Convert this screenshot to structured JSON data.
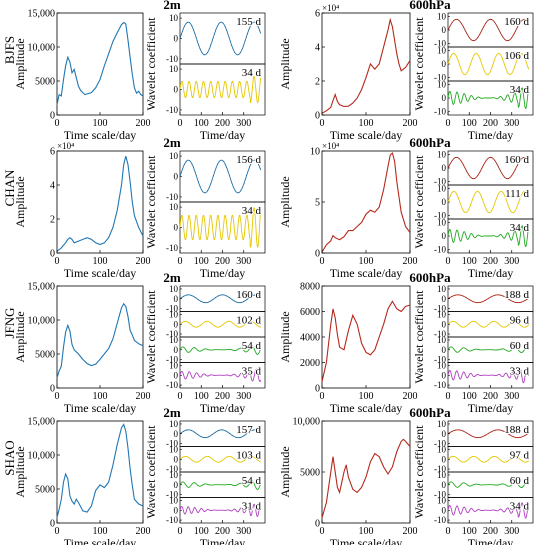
{
  "colors": {
    "blue": "#1f77b4",
    "red": "#b5281c",
    "yellow": "#e6c700",
    "green": "#22aa22",
    "magenta": "#b040c0",
    "axis": "#000000"
  },
  "labels": {
    "amplitude": "Amplitude",
    "time_scale": "Time scale/day",
    "time_day": "Time/day",
    "wavelet": "Wavelet coefficient",
    "level_2m": "2m",
    "level_600": "600hPa"
  },
  "chart_data": [
    {
      "type": "line",
      "station": "BJFS",
      "level": "2m",
      "color": "#1f77b4",
      "xlabel": "Time scale/day",
      "ylabel": "Amplitude",
      "xlim": [
        0,
        200
      ],
      "xticks": [
        0,
        100,
        200
      ],
      "ylim": [
        0,
        15000
      ],
      "yticks": [
        0,
        5000,
        10000,
        15000
      ],
      "yticklabels": [
        "0",
        "5000",
        "10,000",
        "15,000"
      ],
      "yexp": "",
      "x": [
        0,
        5,
        10,
        15,
        20,
        25,
        30,
        35,
        40,
        45,
        50,
        55,
        60,
        65,
        70,
        80,
        90,
        100,
        110,
        120,
        130,
        140,
        150,
        155,
        160,
        165,
        170,
        175,
        180,
        185,
        190,
        195,
        200
      ],
      "y": [
        1500,
        3000,
        2800,
        5200,
        7200,
        8500,
        7800,
        6200,
        6700,
        5500,
        4200,
        3600,
        3300,
        3000,
        3100,
        3300,
        4000,
        5200,
        7200,
        9000,
        10800,
        12100,
        13300,
        13600,
        13400,
        11000,
        8500,
        6000,
        4000,
        3200,
        3500,
        3000,
        2800
      ]
    },
    {
      "type": "line",
      "station": "BJFS",
      "level": "600hPa",
      "color": "#b5281c",
      "xlabel": "Time scale/day",
      "ylabel": "Amplitude",
      "xlim": [
        0,
        200
      ],
      "xticks": [
        0,
        100,
        200
      ],
      "ylim": [
        0,
        60000
      ],
      "yticks": [
        0,
        20000,
        40000,
        60000
      ],
      "yticklabels": [
        "0",
        "2",
        "4",
        "6"
      ],
      "yexp": "×10⁴",
      "x": [
        0,
        10,
        20,
        25,
        30,
        35,
        40,
        50,
        60,
        70,
        80,
        90,
        100,
        110,
        120,
        130,
        140,
        150,
        155,
        160,
        165,
        170,
        175,
        180,
        190,
        200
      ],
      "y": [
        1000,
        2500,
        4500,
        8500,
        12000,
        8000,
        6000,
        5000,
        5200,
        7000,
        10000,
        15000,
        22000,
        30000,
        27000,
        30000,
        40000,
        50000,
        56000,
        52000,
        44000,
        36000,
        30000,
        26000,
        28000,
        32000
      ]
    },
    {
      "type": "line",
      "station": "CHAN",
      "level": "2m",
      "color": "#1f77b4",
      "xlabel": "Time scale/day",
      "ylabel": "Amplitude",
      "xlim": [
        0,
        200
      ],
      "xticks": [
        0,
        100,
        200
      ],
      "ylim": [
        0,
        60000
      ],
      "yticks": [
        0,
        20000,
        40000,
        60000
      ],
      "yticklabels": [
        "0",
        "2",
        "4",
        "6"
      ],
      "yexp": "×10⁴",
      "x": [
        0,
        10,
        20,
        25,
        30,
        35,
        40,
        50,
        60,
        70,
        80,
        90,
        100,
        110,
        120,
        130,
        140,
        150,
        155,
        160,
        165,
        170,
        175,
        180,
        190,
        200
      ],
      "y": [
        1000,
        3000,
        6000,
        8000,
        9000,
        8000,
        6000,
        7000,
        8000,
        9000,
        8000,
        6000,
        5000,
        6000,
        9000,
        15000,
        25000,
        40000,
        52000,
        57000,
        52000,
        42000,
        30000,
        22000,
        15000,
        10000
      ]
    },
    {
      "type": "line",
      "station": "CHAN",
      "level": "600hPa",
      "color": "#b5281c",
      "xlabel": "Time scale/day",
      "ylabel": "Amplitude",
      "xlim": [
        0,
        200
      ],
      "xticks": [
        0,
        100,
        200
      ],
      "ylim": [
        0,
        100000
      ],
      "yticks": [
        0,
        50000,
        100000
      ],
      "yticklabels": [
        "0",
        "5",
        "10"
      ],
      "yexp": "×10⁴",
      "x": [
        0,
        10,
        20,
        25,
        30,
        40,
        50,
        60,
        70,
        80,
        90,
        100,
        110,
        120,
        130,
        140,
        150,
        155,
        160,
        165,
        170,
        175,
        180,
        190,
        200
      ],
      "y": [
        1000,
        8000,
        12000,
        17000,
        15000,
        13000,
        16000,
        22000,
        22000,
        26000,
        30000,
        38000,
        42000,
        40000,
        45000,
        62000,
        85000,
        96000,
        98000,
        90000,
        70000,
        55000,
        40000,
        26000,
        20000
      ]
    },
    {
      "type": "line",
      "station": "JFNG",
      "level": "2m",
      "color": "#1f77b4",
      "xlabel": "Time scale/day",
      "ylabel": "Amplitude",
      "xlim": [
        0,
        200
      ],
      "xticks": [
        0,
        100,
        200
      ],
      "ylim": [
        0,
        15000
      ],
      "yticks": [
        0,
        5000,
        10000,
        15000
      ],
      "yticklabels": [
        "0",
        "5000",
        "10,000",
        "15,000"
      ],
      "yexp": "",
      "x": [
        0,
        5,
        10,
        15,
        20,
        25,
        30,
        35,
        40,
        50,
        60,
        70,
        80,
        90,
        100,
        110,
        120,
        130,
        140,
        150,
        155,
        160,
        165,
        170,
        175,
        180,
        190,
        200
      ],
      "y": [
        1500,
        2500,
        3200,
        6000,
        8200,
        9200,
        8400,
        6400,
        5600,
        5000,
        4200,
        3600,
        3300,
        3500,
        4200,
        5000,
        5800,
        7200,
        9500,
        11800,
        12400,
        12000,
        10500,
        8500,
        7800,
        7000,
        6500,
        6200
      ]
    },
    {
      "type": "line",
      "station": "JFNG",
      "level": "600hPa",
      "color": "#b5281c",
      "xlabel": "Time scale/day",
      "ylabel": "Amplitude",
      "xlim": [
        0,
        200
      ],
      "xticks": [
        0,
        100,
        200
      ],
      "ylim": [
        0,
        8000
      ],
      "yticks": [
        0,
        2000,
        4000,
        6000,
        8000
      ],
      "yticklabels": [
        "0",
        "2000",
        "4000",
        "6000",
        "8000"
      ],
      "yexp": "",
      "x": [
        0,
        10,
        15,
        20,
        25,
        30,
        35,
        40,
        50,
        60,
        70,
        80,
        90,
        100,
        110,
        120,
        130,
        140,
        150,
        160,
        170,
        180,
        190,
        200
      ],
      "y": [
        500,
        2000,
        3500,
        5000,
        6200,
        5500,
        4200,
        3200,
        3000,
        4500,
        5700,
        5000,
        3500,
        2800,
        2600,
        3000,
        4000,
        5000,
        6200,
        6800,
        6200,
        6000,
        6400,
        6500
      ]
    },
    {
      "type": "line",
      "station": "SHAO",
      "level": "2m",
      "color": "#1f77b4",
      "xlabel": "Time scale/day",
      "ylabel": "Amplitude",
      "xlim": [
        0,
        200
      ],
      "xticks": [
        0,
        100,
        200
      ],
      "ylim": [
        0,
        15000
      ],
      "yticks": [
        0,
        5000,
        10000,
        15000
      ],
      "yticklabels": [
        "0",
        "5000",
        "10,000",
        "15,000"
      ],
      "yexp": "",
      "x": [
        0,
        5,
        10,
        15,
        20,
        25,
        30,
        35,
        40,
        45,
        50,
        60,
        70,
        80,
        90,
        100,
        110,
        120,
        130,
        140,
        150,
        155,
        160,
        165,
        170,
        175,
        180,
        190,
        200
      ],
      "y": [
        800,
        2000,
        3500,
        6000,
        7200,
        6500,
        4000,
        3200,
        2800,
        3500,
        3000,
        1800,
        1600,
        2500,
        4800,
        5600,
        5200,
        6000,
        8500,
        11500,
        14000,
        14500,
        13500,
        11000,
        8000,
        5500,
        3500,
        2800,
        2500
      ]
    },
    {
      "type": "line",
      "station": "SHAO",
      "level": "600hPa",
      "color": "#b5281c",
      "xlabel": "Time scale/day",
      "ylabel": "Amplitude",
      "xlim": [
        0,
        200
      ],
      "xticks": [
        0,
        100,
        200
      ],
      "ylim": [
        0,
        10000
      ],
      "yticks": [
        0,
        5000,
        10000
      ],
      "yticklabels": [
        "0",
        "5000",
        "10,000"
      ],
      "yexp": "",
      "x": [
        0,
        10,
        15,
        20,
        25,
        30,
        35,
        40,
        50,
        55,
        60,
        70,
        80,
        90,
        100,
        110,
        120,
        130,
        140,
        150,
        160,
        170,
        180,
        185,
        190,
        200
      ],
      "y": [
        500,
        2000,
        3500,
        5000,
        6500,
        5000,
        3500,
        3000,
        5000,
        5700,
        4500,
        3300,
        3000,
        3500,
        4500,
        6000,
        6800,
        6500,
        5500,
        4800,
        5500,
        7000,
        8000,
        8200,
        8000,
        7500
      ]
    },
    {
      "type": "line",
      "station": "BJFS",
      "level": "2m",
      "color": "#000000",
      "ylabel": "Wavelet coefficient",
      "xlabel": "Time/day",
      "xlim": [
        0,
        400
      ],
      "xticks": [
        0,
        100,
        200,
        300
      ],
      "yticks": [
        -10,
        0,
        10
      ],
      "series": [
        {
          "name": "155 d",
          "period": 155,
          "amp": 8,
          "color": "#1f77b4"
        },
        {
          "name": "34 d",
          "period": 34,
          "amp": 4,
          "color": "#e6c700"
        }
      ]
    },
    {
      "type": "line",
      "station": "BJFS",
      "level": "600hPa",
      "color": "#000000",
      "ylabel": "Wavelet coefficient",
      "xlabel": "Time/day",
      "xlim": [
        0,
        400
      ],
      "xticks": [
        0,
        100,
        200,
        300
      ],
      "yticks": [
        -10,
        0,
        10
      ],
      "series": [
        {
          "name": "160 d",
          "period": 160,
          "amp": 8,
          "color": "#b5281c"
        },
        {
          "name": "106 d",
          "period": 106,
          "amp": 8,
          "color": "#e6c700"
        },
        {
          "name": "34 d",
          "period": 34,
          "amp": 5,
          "color": "#22aa22"
        }
      ]
    },
    {
      "type": "line",
      "station": "CHAN",
      "level": "2m",
      "color": "#000000",
      "ylabel": "Wavelet coefficient",
      "xlabel": "Time/day",
      "xlim": [
        0,
        400
      ],
      "xticks": [
        0,
        100,
        200,
        300
      ],
      "yticks": [
        -10,
        0,
        10
      ],
      "series": [
        {
          "name": "156 d",
          "period": 156,
          "amp": 8,
          "color": "#1f77b4"
        },
        {
          "name": "34 d",
          "period": 34,
          "amp": 6,
          "color": "#e6c700"
        }
      ]
    },
    {
      "type": "line",
      "station": "CHAN",
      "level": "600hPa",
      "color": "#000000",
      "ylabel": "Wavelet coefficient",
      "xlabel": "Time/day",
      "xlim": [
        0,
        400
      ],
      "xticks": [
        0,
        100,
        200,
        300
      ],
      "yticks": [
        -10,
        0,
        10
      ],
      "series": [
        {
          "name": "160 d",
          "period": 160,
          "amp": 8,
          "color": "#b5281c"
        },
        {
          "name": "111 d",
          "period": 111,
          "amp": 8,
          "color": "#e6c700"
        },
        {
          "name": "34 d",
          "period": 34,
          "amp": 5,
          "color": "#22aa22"
        }
      ]
    },
    {
      "type": "line",
      "station": "JFNG",
      "level": "2m",
      "color": "#000000",
      "ylabel": "Wavelet coefficient",
      "xlabel": "Time/day",
      "xlim": [
        0,
        400
      ],
      "xticks": [
        0,
        100,
        200,
        300
      ],
      "yticks": [
        -10,
        0,
        10
      ],
      "series": [
        {
          "name": "160 d",
          "period": 160,
          "amp": 4,
          "color": "#1f77b4"
        },
        {
          "name": "102 d",
          "period": 102,
          "amp": 3,
          "color": "#e6c700"
        },
        {
          "name": "54 d",
          "period": 54,
          "amp": 3,
          "color": "#22aa22"
        },
        {
          "name": "35 d",
          "period": 35,
          "amp": 4,
          "color": "#b040c0"
        }
      ]
    },
    {
      "type": "line",
      "station": "JFNG",
      "level": "600hPa",
      "color": "#000000",
      "ylabel": "Wavelet coefficient",
      "xlabel": "Time/day",
      "xlim": [
        0,
        400
      ],
      "xticks": [
        0,
        100,
        200,
        300
      ],
      "yticks": [
        -10,
        0,
        10
      ],
      "series": [
        {
          "name": "188 d",
          "period": 188,
          "amp": 4,
          "color": "#b5281c"
        },
        {
          "name": "96 d",
          "period": 96,
          "amp": 3,
          "color": "#e6c700"
        },
        {
          "name": "60 d",
          "period": 60,
          "amp": 3,
          "color": "#22aa22"
        },
        {
          "name": "33 d",
          "period": 33,
          "amp": 5,
          "color": "#b040c0"
        }
      ]
    },
    {
      "type": "line",
      "station": "SHAO",
      "level": "2m",
      "color": "#000000",
      "ylabel": "Wavelet coefficient",
      "xlabel": "Time/day",
      "xlim": [
        0,
        400
      ],
      "xticks": [
        0,
        100,
        200,
        300
      ],
      "yticks": [
        -10,
        0,
        10
      ],
      "series": [
        {
          "name": "157 d",
          "period": 157,
          "amp": 4,
          "color": "#1f77b4"
        },
        {
          "name": "103 d",
          "period": 103,
          "amp": 3,
          "color": "#e6c700"
        },
        {
          "name": "54 d",
          "period": 54,
          "amp": 3,
          "color": "#22aa22"
        },
        {
          "name": "31 d",
          "period": 31,
          "amp": 4,
          "color": "#b040c0"
        }
      ]
    },
    {
      "type": "line",
      "station": "SHAO",
      "level": "600hPa",
      "color": "#000000",
      "ylabel": "Wavelet coefficient",
      "xlabel": "Time/day",
      "xlim": [
        0,
        400
      ],
      "xticks": [
        0,
        100,
        200,
        300
      ],
      "yticks": [
        -10,
        0,
        10
      ],
      "series": [
        {
          "name": "188 d",
          "period": 188,
          "amp": 4,
          "color": "#b5281c"
        },
        {
          "name": "97 d",
          "period": 97,
          "amp": 3,
          "color": "#e6c700"
        },
        {
          "name": "60 d",
          "period": 60,
          "amp": 3,
          "color": "#22aa22"
        },
        {
          "name": "34 d",
          "period": 34,
          "amp": 5,
          "color": "#b040c0"
        }
      ]
    }
  ]
}
